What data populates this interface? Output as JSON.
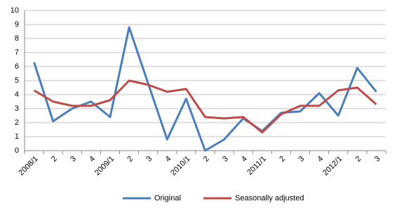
{
  "chart_data": {
    "type": "line",
    "categories": [
      "2008/1",
      "2",
      "3",
      "4",
      "2009/1",
      "2",
      "3",
      "4",
      "2010/1",
      "2",
      "3",
      "4",
      "2011/1",
      "2",
      "3",
      "4",
      "2012/1",
      "2",
      "3"
    ],
    "series": [
      {
        "name": "Original",
        "color": "#4a7ebb",
        "values": [
          6.3,
          2.1,
          3.0,
          3.5,
          2.4,
          8.8,
          4.8,
          0.8,
          3.7,
          0.0,
          0.8,
          2.3,
          1.4,
          2.7,
          2.8,
          4.1,
          2.5,
          5.9,
          4.2
        ]
      },
      {
        "name": "Seasonally adjusted",
        "color": "#be4b48",
        "values": [
          4.3,
          3.5,
          3.2,
          3.2,
          3.6,
          5.0,
          4.7,
          4.2,
          4.4,
          2.4,
          2.3,
          2.4,
          1.3,
          2.6,
          3.2,
          3.2,
          4.3,
          4.5,
          3.3
        ]
      }
    ],
    "ylim": [
      0,
      10
    ],
    "yticks": [
      0,
      1,
      2,
      3,
      4,
      5,
      6,
      7,
      8,
      9,
      10
    ],
    "grid": true,
    "legend": "bottom"
  }
}
